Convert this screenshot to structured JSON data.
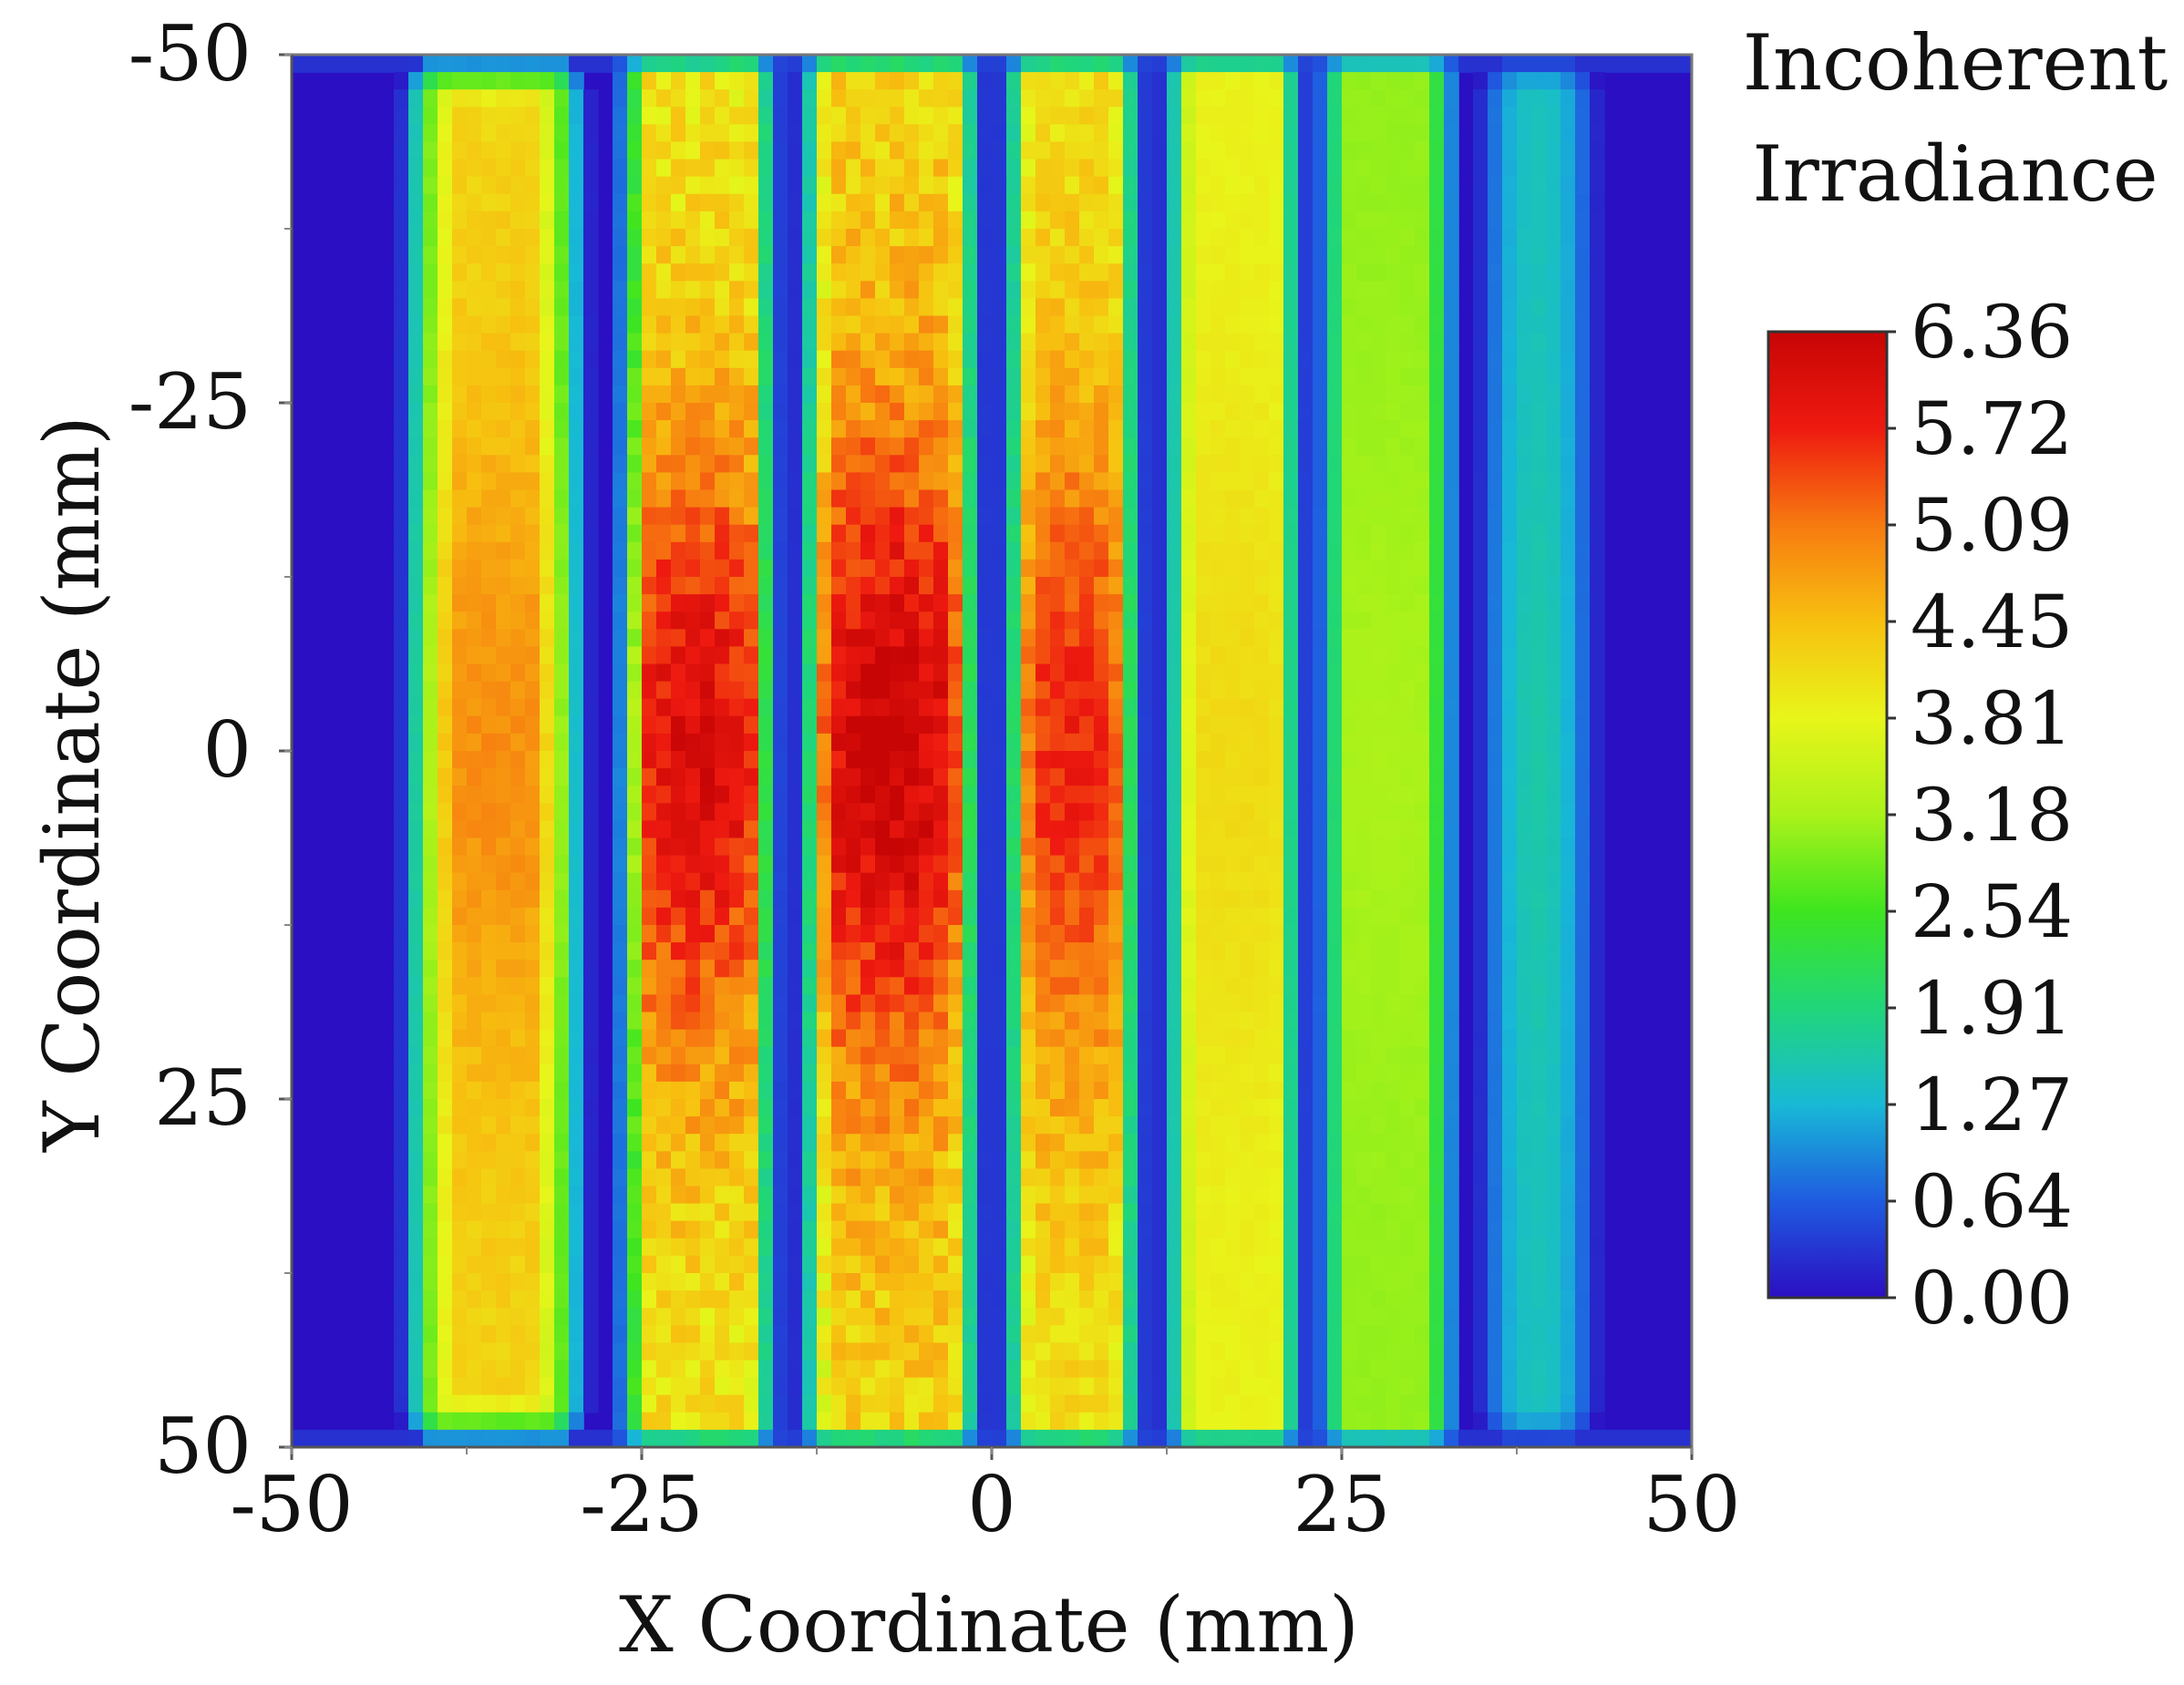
{
  "chart_data": {
    "type": "heatmap",
    "title": "Incoherent Irradiance",
    "title_lines": [
      "Incoherent",
      "Irradiance"
    ],
    "xlabel": "X Coordinate (mm)",
    "ylabel": "Y Coordinate (mm)",
    "xlim": [
      -50,
      50
    ],
    "ylim": [
      -50,
      50
    ],
    "y_axis_direction": "top-to-bottom increasing",
    "x_ticks": [
      -50,
      -25,
      0,
      25,
      50
    ],
    "y_ticks": [
      -50,
      -25,
      0,
      25,
      50
    ],
    "colorbar": {
      "min": 0.0,
      "max": 6.36,
      "tick_labels": [
        "6.36",
        "5.72",
        "5.09",
        "4.45",
        "3.81",
        "3.18",
        "2.54",
        "1.91",
        "1.27",
        "0.64",
        "0.00"
      ],
      "colors": [
        "#2b0fc2",
        "#1f5be0",
        "#18b9d6",
        "#20d67a",
        "#3ee51f",
        "#aaf21a",
        "#e8f51a",
        "#f7c010",
        "#f77a10",
        "#ee1a10",
        "#c70505"
      ]
    },
    "background_value": 0.0,
    "stripes": [
      {
        "x_start": -42,
        "x_end": -29,
        "peak": 4.9,
        "base": 4.2,
        "edge_rounding": "strong"
      },
      {
        "x_start": -26,
        "x_end": -16,
        "peak": 6.05,
        "base": 4.0,
        "edge_rounding": "slight"
      },
      {
        "x_start": -13,
        "x_end": -1.5,
        "peak": 6.3,
        "base": 4.2,
        "edge_rounding": "slight"
      },
      {
        "x_start": 1.5,
        "x_end": 10,
        "peak": 5.7,
        "base": 4.1,
        "edge_rounding": "slight"
      },
      {
        "x_start": 13,
        "x_end": 21.5,
        "peak": 4.15,
        "base": 3.85,
        "edge_rounding": "slight"
      },
      {
        "x_start": 24,
        "x_end": 32.5,
        "peak": 3.2,
        "base": 3.05,
        "edge_rounding": "slight"
      },
      {
        "x_start": 35,
        "x_end": 43,
        "peak": 1.6,
        "base": 1.45,
        "edge_rounding": "strong"
      }
    ]
  }
}
